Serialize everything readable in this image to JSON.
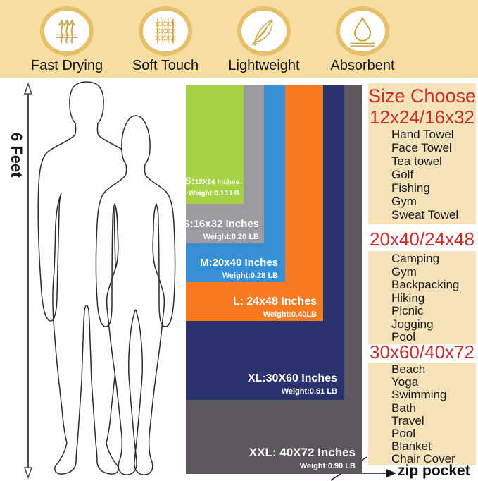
{
  "features": [
    {
      "label": "Fast Drying",
      "icon": "steam-icon"
    },
    {
      "label": "Soft Touch",
      "icon": "mesh-icon"
    },
    {
      "label": "Lightweight",
      "icon": "feather-icon"
    },
    {
      "label": "Absorbent",
      "icon": "waterdrop-icon"
    }
  ],
  "height_scale": {
    "label": "6 Feet"
  },
  "sizes": [
    {
      "code": "xs",
      "name": "XS:",
      "dims": "12X24 Inches",
      "weight": "Weight:0.13 LB",
      "color": "#a6d243"
    },
    {
      "code": "s",
      "name": "S:",
      "dims": "16x32 Inches",
      "weight": "Weight:0.20 LB",
      "color": "#9e9ba0"
    },
    {
      "code": "m",
      "name": "M:",
      "dims": "20x40 Inches",
      "weight": "Weight:0.28 LB",
      "color": "#3590d8"
    },
    {
      "code": "l",
      "name": "L: ",
      "dims": "24x48 Inches",
      "weight": "Weight:0.40LB",
      "color": "#f87b22"
    },
    {
      "code": "xl",
      "name": "XL:",
      "dims": "30X60 Inches",
      "weight": "Weight:0.61 LB",
      "color": "#2a336e"
    },
    {
      "code": "xxl",
      "name": "XXL: ",
      "dims": "40X72 Inches",
      "weight": "Weight:0.90 LB",
      "color": "#5c575c"
    }
  ],
  "size_guide": {
    "title": "Size Choose",
    "groups": [
      {
        "heading": "12x24/16x32",
        "items": [
          "Hand Towel",
          "Face Towel",
          "Tea towel",
          "Golf",
          "Fishing",
          "Gym",
          "Sweat Towel"
        ]
      },
      {
        "heading": "20x40/24x48",
        "items": [
          "Camping",
          "Gym",
          "Backpacking",
          "Hiking",
          "Picnic",
          "Jogging",
          "Pool"
        ]
      },
      {
        "heading": "30x60/40x72",
        "items": [
          "Beach",
          "Yoga",
          "Swimming",
          "Bath",
          "Travel",
          "Pool",
          "Blanket",
          "Chair Cover"
        ]
      }
    ]
  },
  "zip_pocket": {
    "label": "zip pocket"
  },
  "colors": {
    "band_bg": "#f7dda1",
    "box_bg": "#f5e2ba",
    "heading_red": "#c9302b",
    "icon_gold": "#c9a23f",
    "ring_gold": "#e7bf69"
  }
}
